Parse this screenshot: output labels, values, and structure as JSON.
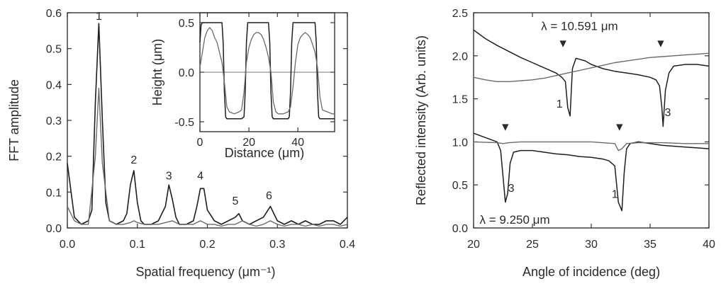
{
  "chart_data": [
    {
      "type": "line",
      "xlabel": "Spatial frequency (μm⁻¹)",
      "ylabel": "FFT amplitude",
      "xlim": [
        0.0,
        0.4
      ],
      "ylim": [
        0.0,
        0.6
      ],
      "xticks": [
        "0.0",
        "0.1",
        "0.2",
        "0.3",
        "0.4"
      ],
      "yticks": [
        "0.0",
        "0.1",
        "0.2",
        "0.3",
        "0.4",
        "0.5",
        "0.6"
      ],
      "annotations": [
        {
          "text": "1",
          "x": 0.045,
          "y": 0.58
        },
        {
          "text": "2",
          "x": 0.095,
          "y": 0.18
        },
        {
          "text": "3",
          "x": 0.145,
          "y": 0.135
        },
        {
          "text": "4",
          "x": 0.19,
          "y": 0.135
        },
        {
          "text": "5",
          "x": 0.24,
          "y": 0.065
        },
        {
          "text": "6",
          "x": 0.288,
          "y": 0.08
        }
      ],
      "series": [
        {
          "color": "#1e1e1e",
          "x": [
            0.0,
            0.01,
            0.02,
            0.03,
            0.035,
            0.04,
            0.045,
            0.05,
            0.055,
            0.06,
            0.07,
            0.08,
            0.085,
            0.09,
            0.095,
            0.1,
            0.105,
            0.11,
            0.12,
            0.13,
            0.14,
            0.145,
            0.15,
            0.155,
            0.16,
            0.17,
            0.18,
            0.185,
            0.19,
            0.195,
            0.2,
            0.21,
            0.22,
            0.23,
            0.24,
            0.245,
            0.25,
            0.26,
            0.27,
            0.28,
            0.29,
            0.3,
            0.31,
            0.32,
            0.33,
            0.34,
            0.35,
            0.36,
            0.37,
            0.38,
            0.39,
            0.4
          ],
          "y": [
            0.18,
            0.03,
            0.01,
            0.02,
            0.05,
            0.35,
            0.57,
            0.3,
            0.07,
            0.02,
            0.01,
            0.02,
            0.04,
            0.12,
            0.16,
            0.07,
            0.02,
            0.01,
            0.01,
            0.02,
            0.06,
            0.12,
            0.08,
            0.03,
            0.01,
            0.01,
            0.02,
            0.06,
            0.11,
            0.11,
            0.05,
            0.02,
            0.01,
            0.02,
            0.03,
            0.04,
            0.02,
            0.01,
            0.02,
            0.03,
            0.06,
            0.02,
            0.01,
            0.02,
            0.01,
            0.02,
            0.01,
            0.01,
            0.02,
            0.02,
            0.01,
            0.03
          ]
        },
        {
          "color": "#6a6a6a",
          "x": [
            0.0,
            0.01,
            0.02,
            0.03,
            0.04,
            0.045,
            0.05,
            0.06,
            0.07,
            0.08,
            0.09,
            0.095,
            0.1,
            0.11,
            0.12,
            0.13,
            0.14,
            0.15,
            0.16,
            0.17,
            0.18,
            0.19,
            0.2,
            0.21,
            0.22,
            0.23,
            0.24,
            0.25,
            0.26,
            0.27,
            0.28,
            0.29,
            0.3,
            0.31,
            0.32,
            0.33,
            0.34,
            0.35,
            0.36,
            0.37,
            0.38,
            0.39,
            0.4
          ],
          "y": [
            0.06,
            0.02,
            0.01,
            0.01,
            0.2,
            0.39,
            0.18,
            0.02,
            0.01,
            0.01,
            0.015,
            0.02,
            0.015,
            0.01,
            0.01,
            0.01,
            0.015,
            0.02,
            0.01,
            0.01,
            0.01,
            0.02,
            0.01,
            0.01,
            0.005,
            0.01,
            0.01,
            0.02,
            0.01,
            0.005,
            0.01,
            0.02,
            0.01,
            0.005,
            0.01,
            0.01,
            0.005,
            0.01,
            0.005,
            0.01,
            0.01,
            0.005,
            0.01
          ]
        }
      ]
    },
    {
      "type": "line",
      "inset": true,
      "xlabel": "Distance (μm)",
      "ylabel": "Height (μm)",
      "xlim": [
        0,
        55
      ],
      "ylim": [
        -0.6,
        0.6
      ],
      "xticks": [
        "0",
        "20",
        "40"
      ],
      "yticks": [
        "-0.5",
        "0.0",
        "0.5"
      ],
      "series": [
        {
          "color": "#1e1e1e",
          "x": [
            0,
            0.5,
            1,
            9,
            9.5,
            10,
            10.5,
            11,
            17,
            18,
            18.5,
            19,
            19.5,
            28,
            28.5,
            29,
            29.5,
            30,
            36,
            36.5,
            37,
            37.5,
            38,
            47,
            47.5,
            48,
            48.5,
            49,
            54,
            55
          ],
          "y": [
            0.3,
            0.48,
            0.5,
            0.5,
            0.3,
            -0.2,
            -0.45,
            -0.47,
            -0.47,
            -0.45,
            -0.2,
            0.3,
            0.5,
            0.5,
            0.3,
            -0.2,
            -0.45,
            -0.47,
            -0.47,
            -0.45,
            -0.2,
            0.3,
            0.5,
            0.5,
            0.3,
            -0.2,
            -0.45,
            -0.47,
            -0.47,
            -0.47
          ]
        },
        {
          "color": "#6a6a6a",
          "x": [
            0,
            1,
            2,
            3,
            4,
            5,
            6,
            7,
            8,
            9,
            10,
            11,
            12,
            14,
            16,
            17,
            18,
            19,
            20,
            21,
            22,
            23,
            24,
            25,
            26,
            27,
            28,
            29,
            30,
            31,
            32,
            34,
            36,
            37,
            38,
            39,
            40,
            41,
            42,
            43,
            44,
            45,
            46,
            47,
            48,
            49,
            50,
            52,
            54,
            55
          ],
          "y": [
            0.05,
            0.2,
            0.35,
            0.42,
            0.45,
            0.42,
            0.35,
            0.3,
            0.2,
            0.1,
            -0.1,
            -0.35,
            -0.4,
            -0.42,
            -0.4,
            -0.38,
            -0.2,
            0.1,
            0.25,
            0.33,
            0.38,
            0.4,
            0.4,
            0.38,
            0.33,
            0.25,
            0.15,
            0.0,
            -0.3,
            -0.4,
            -0.42,
            -0.42,
            -0.4,
            -0.35,
            -0.15,
            0.1,
            0.28,
            0.35,
            0.38,
            0.4,
            0.38,
            0.35,
            0.28,
            0.2,
            0.05,
            -0.25,
            -0.38,
            -0.4,
            -0.42,
            -0.42
          ]
        }
      ]
    },
    {
      "type": "line",
      "xlabel": "Angle of incidence (deg)",
      "ylabel": "Reflected intensity (Arb. units)",
      "xlim": [
        20,
        40
      ],
      "ylim": [
        0.0,
        2.5
      ],
      "xticks": [
        "20",
        "25",
        "30",
        "35",
        "40"
      ],
      "yticks": [
        "0.0",
        "0.5",
        "1.0",
        "1.5",
        "2.0",
        "2.5"
      ],
      "annotations": [
        {
          "text": "λ = 10.591 μm",
          "x": 29.0,
          "y": 2.3
        },
        {
          "text": "λ = 9.250 μm",
          "x": 23.5,
          "y": 0.05
        },
        {
          "text": "1",
          "x": 27.3,
          "y": 1.4
        },
        {
          "text": "3",
          "x": 36.5,
          "y": 1.3
        },
        {
          "text": "3",
          "x": 23.2,
          "y": 0.42
        },
        {
          "text": "1",
          "x": 32.0,
          "y": 0.35
        }
      ],
      "markers": [
        {
          "symbol": "▼",
          "x": 27.6,
          "y": 2.1
        },
        {
          "symbol": "▼",
          "x": 35.9,
          "y": 2.1
        },
        {
          "symbol": "▼",
          "x": 22.7,
          "y": 1.13
        },
        {
          "symbol": "▼",
          "x": 32.4,
          "y": 1.13
        }
      ],
      "series": [
        {
          "color": "#1e1e1e",
          "x": [
            20,
            21,
            22,
            23,
            24,
            25,
            26,
            27,
            27.5,
            27.8,
            28.0,
            28.2,
            28.4,
            28.7,
            29,
            29.5,
            30,
            31,
            32,
            33,
            34,
            35,
            35.5,
            35.8,
            36.0,
            36.1,
            36.3,
            36.6,
            37,
            38,
            39,
            40
          ],
          "y": [
            2.3,
            2.2,
            2.12,
            2.05,
            1.98,
            1.92,
            1.86,
            1.8,
            1.75,
            1.7,
            1.4,
            1.3,
            1.85,
            1.97,
            1.96,
            1.94,
            1.9,
            1.85,
            1.82,
            1.8,
            1.78,
            1.75,
            1.72,
            1.65,
            1.4,
            1.18,
            1.6,
            1.8,
            1.88,
            1.9,
            1.9,
            1.88
          ]
        },
        {
          "color": "#6a6a6a",
          "x": [
            20,
            21,
            22,
            23,
            24,
            25,
            26,
            27,
            28,
            29,
            30,
            31,
            32,
            33,
            34,
            35,
            36,
            37,
            38,
            39,
            40
          ],
          "y": [
            1.75,
            1.72,
            1.7,
            1.7,
            1.71,
            1.72,
            1.74,
            1.77,
            1.8,
            1.83,
            1.86,
            1.89,
            1.92,
            1.94,
            1.96,
            1.98,
            1.99,
            2.0,
            2.01,
            2.02,
            2.03
          ]
        },
        {
          "color": "#1e1e1e",
          "x": [
            20,
            21,
            22,
            22.3,
            22.5,
            22.7,
            22.9,
            23.1,
            23.4,
            24,
            25,
            26,
            27,
            28,
            29,
            30,
            31,
            31.5,
            32,
            32.3,
            32.6,
            32.8,
            33.0,
            33.3,
            34,
            35,
            36,
            37,
            38,
            39,
            40
          ],
          "y": [
            1.1,
            1.05,
            1.0,
            0.9,
            0.6,
            0.3,
            0.4,
            0.75,
            0.88,
            0.9,
            0.9,
            0.88,
            0.86,
            0.85,
            0.83,
            0.82,
            0.8,
            0.78,
            0.72,
            0.3,
            0.2,
            0.65,
            0.92,
            0.98,
            1.0,
            0.98,
            0.96,
            0.95,
            0.94,
            0.93,
            0.92
          ]
        },
        {
          "color": "#6a6a6a",
          "x": [
            20,
            22,
            22.5,
            23,
            24,
            26,
            28,
            30,
            32,
            32.3,
            32.6,
            33,
            34,
            36,
            38,
            40
          ],
          "y": [
            1.0,
            0.99,
            0.98,
            0.99,
            1.0,
            1.0,
            1.0,
            1.0,
            0.98,
            0.9,
            0.92,
            0.98,
            0.99,
            0.99,
            0.98,
            0.98
          ]
        }
      ]
    }
  ]
}
